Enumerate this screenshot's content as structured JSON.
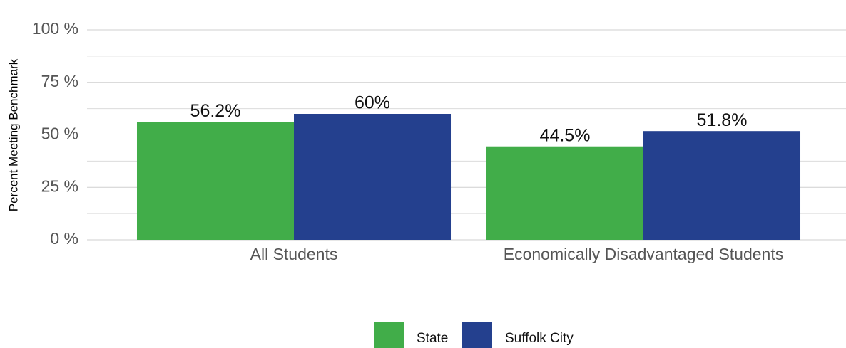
{
  "chart_data": {
    "type": "bar",
    "y_label": "Percent Meeting Benchmark",
    "categories": [
      "All Students",
      "Economically Disadvantaged Students"
    ],
    "series": [
      {
        "name": "State",
        "color": "#41ad49",
        "values": [
          56.2,
          44.5
        ],
        "value_labels": [
          "56.2%",
          "44.5%"
        ]
      },
      {
        "name": "Suffolk City",
        "color": "#24408e",
        "values": [
          60,
          51.8
        ],
        "value_labels": [
          "60%",
          "51.8%"
        ]
      }
    ],
    "ylim": [
      0,
      100
    ],
    "yticks": [
      {
        "value": 0,
        "label": "0 %"
      },
      {
        "value": 25,
        "label": "25 %"
      },
      {
        "value": 50,
        "label": "50 %"
      },
      {
        "value": 75,
        "label": "75 %"
      },
      {
        "value": 100,
        "label": "100 %"
      }
    ],
    "minor_yticks": [
      12.5,
      37.5,
      62.5,
      87.5
    ],
    "grid": true,
    "legend": "bottom"
  }
}
